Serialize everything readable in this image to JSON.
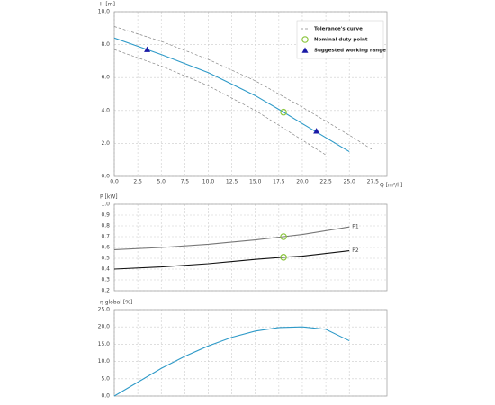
{
  "chart_data": [
    {
      "type": "line",
      "y_label": "H [m]",
      "x_label": "Q [m³/h]",
      "xlim": [
        0,
        29
      ],
      "ylim": [
        0,
        10
      ],
      "xticks": [
        {
          "value": 0,
          "label": "0.0"
        },
        2.5,
        {
          "value": 5,
          "label": "5.0"
        },
        7.5,
        {
          "value": 10,
          "label": "10.0"
        },
        12.5,
        {
          "value": 15,
          "label": "15.0"
        },
        17.5,
        {
          "value": 20,
          "label": "20.0"
        },
        22.5,
        {
          "value": 25,
          "label": "25.0"
        },
        27.5
      ],
      "yticks": [
        {
          "value": 0,
          "label": "0.0"
        },
        {
          "value": 2,
          "label": "2.0"
        },
        {
          "value": 4,
          "label": "4.0"
        },
        {
          "value": 6,
          "label": "6.0"
        },
        {
          "value": 8,
          "label": "8.0"
        },
        {
          "value": 10,
          "label": "10.0"
        }
      ],
      "grid": true,
      "legend": "upper right",
      "xtick_labels": true,
      "series": [
        {
          "name": "Tolerance's curve",
          "color": "#888888",
          "style": "dashed",
          "x": [
            0,
            5,
            10,
            15,
            20,
            25,
            27.5
          ],
          "values": [
            9.1,
            8.2,
            7.1,
            5.8,
            4.2,
            2.5,
            1.6
          ]
        },
        {
          "color": "#888888",
          "style": "dashed",
          "x": [
            0,
            5,
            10,
            15,
            20,
            22.5
          ],
          "values": [
            7.7,
            6.7,
            5.5,
            4.0,
            2.2,
            1.3
          ]
        },
        {
          "color": "#2e9ac8",
          "style": "solid",
          "x": [
            0,
            5,
            10,
            15,
            18,
            20,
            25
          ],
          "values": [
            8.4,
            7.4,
            6.3,
            4.9,
            3.9,
            3.2,
            1.5
          ]
        },
        {
          "name": "Nominal duty point",
          "color": "#8cc63f",
          "style": "none",
          "marker": "circle",
          "x": [
            18
          ],
          "values": [
            3.9
          ]
        },
        {
          "name": "Suggested working range",
          "color": "#1a1aa6",
          "style": "none",
          "marker": "triangle",
          "x": [
            3.5,
            21.5
          ],
          "values": [
            7.7,
            2.75
          ]
        }
      ]
    },
    {
      "type": "line",
      "y_label": "P [kW]",
      "xlim": [
        0,
        29
      ],
      "ylim": [
        0.2,
        1.0
      ],
      "xticks": [
        0,
        2.5,
        5,
        7.5,
        10,
        12.5,
        15,
        17.5,
        20,
        22.5,
        25,
        27.5
      ],
      "xtick_labels": false,
      "yticks": [
        0.2,
        0.3,
        0.4,
        0.5,
        0.6,
        0.7,
        0.8,
        0.9,
        {
          "value": 1.0,
          "label": "1.0"
        }
      ],
      "grid": true,
      "series_labels": "end",
      "series": [
        {
          "name": "P1",
          "color": "#777777",
          "style": "solid",
          "x": [
            0,
            5,
            10,
            15,
            18,
            20,
            25
          ],
          "values": [
            0.58,
            0.6,
            0.63,
            0.67,
            0.7,
            0.72,
            0.79
          ]
        },
        {
          "name": "P2",
          "color": "#111111",
          "style": "solid",
          "x": [
            0,
            5,
            10,
            15,
            18,
            20,
            25
          ],
          "values": [
            0.4,
            0.42,
            0.45,
            0.49,
            0.51,
            0.52,
            0.57
          ]
        },
        {
          "color": "#8cc63f",
          "style": "none",
          "marker": "circle",
          "x": [
            18,
            18
          ],
          "values": [
            0.7,
            0.51
          ]
        }
      ]
    },
    {
      "type": "line",
      "y_label": "η global [%]",
      "xlim": [
        0,
        29
      ],
      "ylim": [
        0,
        25
      ],
      "xticks": [
        0,
        2.5,
        5,
        7.5,
        10,
        12.5,
        15,
        17.5,
        20,
        22.5,
        25,
        27.5
      ],
      "xtick_labels": false,
      "yticks": [
        {
          "value": 0,
          "label": "0.0"
        },
        {
          "value": 5,
          "label": "5.0"
        },
        {
          "value": 10,
          "label": "10.0"
        },
        {
          "value": 15,
          "label": "15.0"
        },
        {
          "value": 20,
          "label": "20.0"
        },
        {
          "value": 25,
          "label": "25.0"
        }
      ],
      "grid": true,
      "series": [
        {
          "color": "#2e9ac8",
          "style": "solid",
          "x": [
            0,
            2.5,
            5,
            7.5,
            10,
            12.5,
            15,
            17.5,
            20,
            22.5,
            25
          ],
          "values": [
            0,
            4,
            8,
            11.5,
            14.5,
            17,
            18.8,
            19.8,
            20,
            19.3,
            16
          ]
        }
      ]
    }
  ]
}
